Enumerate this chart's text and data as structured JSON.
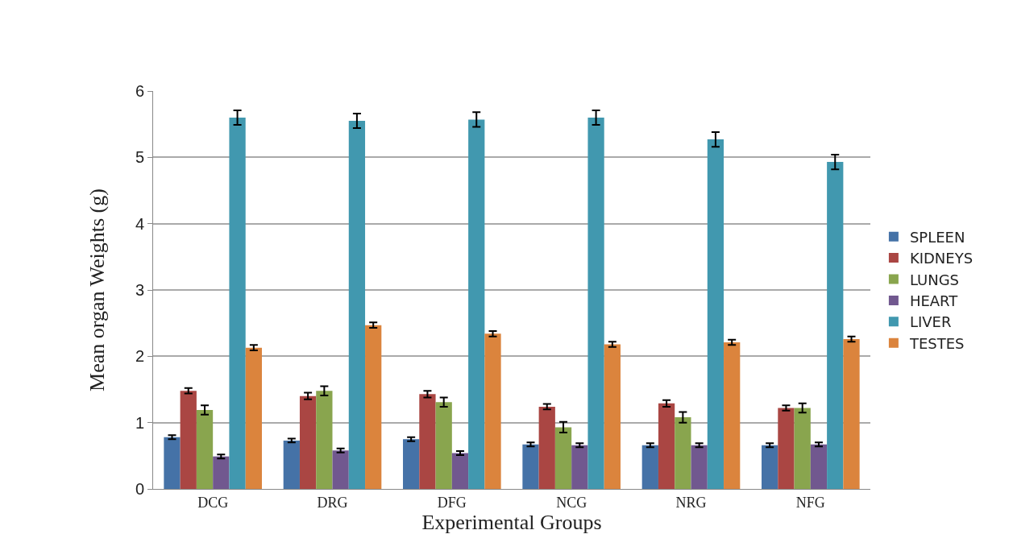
{
  "chart_data": {
    "type": "bar",
    "xlabel": "Experimental Groups",
    "ylabel": "Mean organ Weights (g)",
    "categories": [
      "DCG",
      "DRG",
      "DFG",
      "NCG",
      "NRG",
      "NFG"
    ],
    "series": [
      {
        "name": "SPLEEN",
        "color": "#4572a7",
        "values": [
          0.78,
          0.73,
          0.75,
          0.67,
          0.66,
          0.66
        ],
        "errors": [
          0.03,
          0.03,
          0.03,
          0.03,
          0.03,
          0.03
        ]
      },
      {
        "name": "KIDNEYS",
        "color": "#aa4643",
        "values": [
          1.48,
          1.4,
          1.43,
          1.24,
          1.29,
          1.22
        ],
        "errors": [
          0.04,
          0.05,
          0.05,
          0.04,
          0.05,
          0.04
        ]
      },
      {
        "name": "LUNGS",
        "color": "#89a54e",
        "values": [
          1.19,
          1.48,
          1.31,
          0.93,
          1.08,
          1.22
        ],
        "errors": [
          0.07,
          0.07,
          0.07,
          0.08,
          0.08,
          0.07
        ]
      },
      {
        "name": "HEART",
        "color": "#71588f",
        "values": [
          0.49,
          0.58,
          0.54,
          0.66,
          0.66,
          0.67
        ],
        "errors": [
          0.03,
          0.03,
          0.03,
          0.03,
          0.03,
          0.03
        ]
      },
      {
        "name": "LIVER",
        "color": "#4198af",
        "values": [
          5.6,
          5.55,
          5.57,
          5.6,
          5.27,
          4.93
        ],
        "errors": [
          0.11,
          0.11,
          0.11,
          0.11,
          0.11,
          0.11
        ]
      },
      {
        "name": "TESTES",
        "color": "#db843d",
        "values": [
          2.13,
          2.47,
          2.34,
          2.18,
          2.21,
          2.26
        ],
        "errors": [
          0.04,
          0.04,
          0.04,
          0.04,
          0.04,
          0.04
        ]
      }
    ],
    "ylim": [
      0,
      6
    ],
    "yticks": [
      0,
      1,
      2,
      3,
      4,
      5,
      6
    ],
    "grid": "y",
    "legend": "right"
  }
}
